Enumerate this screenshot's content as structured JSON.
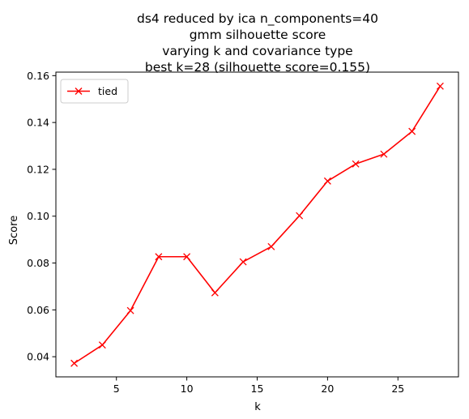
{
  "chart_data": {
    "type": "line",
    "title_lines": [
      "ds4 reduced by ica n_components=40",
      "gmm silhouette score",
      "varying k and covariance type",
      "best k=28 (silhouette score=0.155)"
    ],
    "xlabel": "k",
    "ylabel": "Score",
    "xlim": [
      0.7,
      29.3
    ],
    "ylim": [
      0.0314,
      0.1615
    ],
    "xticks": [
      5,
      10,
      15,
      20,
      25
    ],
    "yticks": [
      0.04,
      0.06,
      0.08,
      0.1,
      0.12,
      0.14,
      0.16
    ],
    "ytick_labels": [
      "0.04",
      "0.06",
      "0.08",
      "0.10",
      "0.12",
      "0.14",
      "0.16"
    ],
    "grid": false,
    "legend": "top-left",
    "series": [
      {
        "name": "tied",
        "color": "#ff0000",
        "marker": "x",
        "x": [
          2,
          4,
          6,
          8,
          10,
          12,
          14,
          16,
          18,
          20,
          22,
          24,
          26,
          28
        ],
        "y": [
          0.0372,
          0.045,
          0.0597,
          0.0827,
          0.0827,
          0.0673,
          0.0805,
          0.087,
          0.1002,
          0.115,
          0.1223,
          0.1265,
          0.1362,
          0.1555
        ]
      }
    ]
  }
}
